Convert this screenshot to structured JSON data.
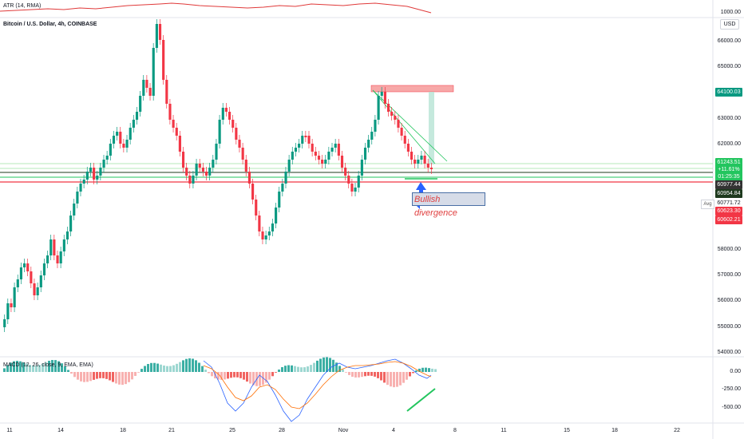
{
  "panes": {
    "atr_title": "ATR (14, RMA)",
    "main_title": "Bitcoin / U.S. Dollar, 4h, COINBASE",
    "macd_title": "MACD (12, 26, close, 9, EMA, EMA)"
  },
  "currency_button": "USD",
  "avg_button": "Avg",
  "annotation": "Bullish divergence",
  "price_axis": {
    "atr_tick": "1000.00",
    "ticks": [
      "66000.00",
      "65000.00",
      "63000.00",
      "62000.00",
      "58000.00",
      "57000.00",
      "56000.00",
      "55000.00",
      "54000.00"
    ],
    "macd_ticks": [
      "0.00",
      "-250.00",
      "-500.00"
    ]
  },
  "price_tags": [
    {
      "text": "64100.03",
      "color": "#089981"
    },
    {
      "text": "61243.51",
      "color": "#22c55e"
    },
    {
      "text": "+11.61%",
      "color": "#22c55e"
    },
    {
      "text": "01:25:35",
      "color": "#22c55e"
    },
    {
      "text": "60977.44",
      "color": "#333333"
    },
    {
      "text": "60954.84",
      "color": "#1e3a1e"
    },
    {
      "text": "60771.72",
      "color": "#ffffff"
    },
    {
      "text": "60623.30",
      "color": "#f23645"
    },
    {
      "text": "60602.21",
      "color": "#f23645"
    }
  ],
  "time_axis": [
    "11",
    "14",
    "18",
    "21",
    "25",
    "28",
    "Nov",
    "4",
    "8",
    "11",
    "15",
    "18",
    "22"
  ],
  "colors": {
    "up": "#089981",
    "down": "#f23645",
    "macd_line": "#2962ff",
    "signal_line": "#ff6d00",
    "atr_line": "#e03a3a"
  }
}
